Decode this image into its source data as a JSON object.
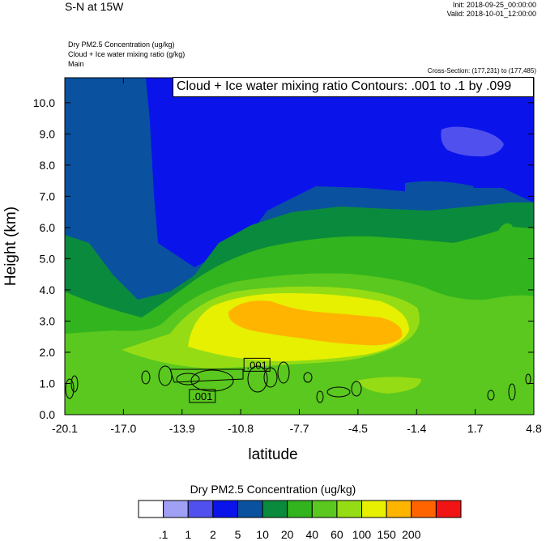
{
  "header": {
    "title": "S-N at 15W",
    "init": "Init: 2018-09-25_00:00:00",
    "valid": "Valid: 2018-10-01_12:00:00"
  },
  "fields": [
    "Dry PM2.5 Concentration   (ug/kg)",
    "Cloud + Ice water mixing ratio   (g/kg)",
    "Main"
  ],
  "cross_section": "Cross-Section: (177,231) to (177,485)",
  "contour_label": "Cloud + Ice water mixing ratio Contours: .001 to .1 by .099",
  "colorbar": {
    "title": "Dry PM2.5 Concentration  (ug/kg)",
    "levels": [
      ".1",
      "1",
      "2",
      "5",
      "10",
      "20",
      "40",
      "60",
      "100",
      "150",
      "200"
    ],
    "colors": [
      "#ffffff",
      "#a0a0f5",
      "#5050ee",
      "#0a14ea",
      "#0a52a0",
      "#0a8a3c",
      "#32b41e",
      "#5ac81e",
      "#96dc14",
      "#e6f000",
      "#ffb400",
      "#ff6400",
      "#f01414"
    ]
  },
  "chart_data": {
    "type": "heatmap",
    "xlabel": "latitude",
    "ylabel": "Height (km)",
    "x_ticks": [
      "-20.1",
      "-17.0",
      "-13.9",
      "-10.8",
      "-7.7",
      "-4.5",
      "-1.4",
      "1.7",
      "4.8"
    ],
    "y_ticks": [
      "0.0",
      "1.0",
      "2.0",
      "3.0",
      "4.0",
      "5.0",
      "6.0",
      "7.0",
      "8.0",
      "9.0",
      "10.0"
    ],
    "xlim": [
      -20.1,
      4.8
    ],
    "ylim": [
      0,
      10.8
    ],
    "contour_annotations": [
      {
        "text": ".001",
        "x": -9.9,
        "y": 1.6
      },
      {
        "text": ".001",
        "x": -12.8,
        "y": 0.6
      }
    ]
  }
}
